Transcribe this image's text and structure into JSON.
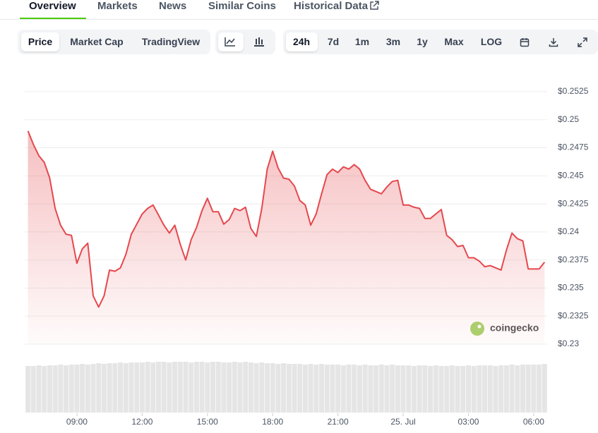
{
  "tabs": [
    "Overview",
    "Markets",
    "News",
    "Similar Coins",
    "Historical Data"
  ],
  "toolbar": {
    "views": [
      "Price",
      "Market Cap",
      "TradingView"
    ],
    "ranges": [
      "24h",
      "7d",
      "1m",
      "3m",
      "1y",
      "Max",
      "LOG"
    ]
  },
  "chart_data": {
    "type": "line",
    "x": [
      6.75,
      7,
      7.25,
      7.5,
      7.75,
      8,
      8.25,
      8.5,
      8.75,
      9,
      9.25,
      9.5,
      9.75,
      10,
      10.25,
      10.5,
      10.75,
      11,
      11.25,
      11.5,
      11.75,
      12,
      12.25,
      12.5,
      12.75,
      13,
      13.25,
      13.5,
      13.75,
      14,
      14.25,
      14.5,
      14.75,
      15,
      15.25,
      15.5,
      15.75,
      16,
      16.25,
      16.5,
      16.75,
      17,
      17.25,
      17.5,
      17.75,
      18,
      18.25,
      18.5,
      18.75,
      19,
      19.25,
      19.5,
      19.75,
      20,
      20.25,
      20.5,
      20.75,
      21,
      21.25,
      21.5,
      21.75,
      22,
      22.25,
      22.5,
      22.75,
      23,
      23.25,
      23.5,
      23.75,
      24,
      24.25,
      24.5,
      24.75,
      25,
      25.25,
      25.5,
      25.75,
      26,
      26.25,
      26.5,
      26.75,
      27,
      27.25,
      27.5,
      27.75,
      28,
      28.25,
      28.5,
      28.75,
      29,
      29.25,
      29.5,
      29.75,
      30,
      30.25,
      30.5
    ],
    "series": [
      {
        "color": "#e5484d",
        "values": [
          0.249,
          0.2478,
          0.2468,
          0.2462,
          0.2448,
          0.2421,
          0.2406,
          0.2398,
          0.2397,
          0.2372,
          0.2385,
          0.239,
          0.2343,
          0.2333,
          0.2343,
          0.2366,
          0.2365,
          0.2368,
          0.238,
          0.2398,
          0.2407,
          0.2416,
          0.2421,
          0.2424,
          0.2415,
          0.2406,
          0.2399,
          0.2406,
          0.2389,
          0.2375,
          0.2393,
          0.2404,
          0.2419,
          0.243,
          0.2418,
          0.2418,
          0.2407,
          0.2411,
          0.2421,
          0.2419,
          0.2422,
          0.2403,
          0.2396,
          0.2421,
          0.2456,
          0.2472,
          0.2457,
          0.2448,
          0.2447,
          0.2441,
          0.2428,
          0.2424,
          0.2406,
          0.2416,
          0.2434,
          0.2451,
          0.2456,
          0.2453,
          0.2458,
          0.2456,
          0.246,
          0.2456,
          0.2446,
          0.2438,
          0.2436,
          0.2434,
          0.244,
          0.2445,
          0.2446,
          0.2424,
          0.2424,
          0.2422,
          0.2421,
          0.2412,
          0.2412,
          0.2416,
          0.242,
          0.2397,
          0.2393,
          0.2387,
          0.2388,
          0.2377,
          0.2377,
          0.2374,
          0.2369,
          0.237,
          0.2368,
          0.2366,
          0.2384,
          0.2399,
          0.2394,
          0.2392,
          0.2367,
          0.2367,
          0.2367,
          0.2373
        ]
      }
    ],
    "volumes": [
      66,
      66,
      67,
      66,
      67,
      67,
      68,
      67,
      68,
      68,
      69,
      68,
      69,
      70,
      69,
      70,
      70,
      71,
      70,
      71,
      71,
      71,
      72,
      71,
      72,
      72,
      71,
      72,
      72,
      72,
      71,
      72,
      72,
      71,
      72,
      72,
      71,
      71,
      72,
      71,
      72,
      71,
      70,
      71,
      70,
      70,
      69,
      70,
      69,
      69,
      69,
      68,
      69,
      68,
      69,
      68,
      68,
      68,
      67,
      68,
      68,
      67,
      68,
      67,
      67,
      68,
      67,
      68,
      67,
      67,
      67,
      66,
      67,
      67,
      66,
      67,
      66,
      66,
      67,
      66,
      66,
      67,
      66,
      67,
      67,
      67,
      66,
      67,
      67,
      68,
      67,
      68,
      68,
      68,
      68,
      69
    ],
    "vlim": [
      0,
      80
    ],
    "ylim": [
      0.23,
      0.2525
    ],
    "yticks": [
      {
        "value": 0.23,
        "label": "$0.23"
      },
      {
        "value": 0.2325,
        "label": "$0.2325"
      },
      {
        "value": 0.235,
        "label": "$0.235"
      },
      {
        "value": 0.2375,
        "label": "$0.2375"
      },
      {
        "value": 0.24,
        "label": "$0.24"
      },
      {
        "value": 0.2425,
        "label": "$0.2425"
      },
      {
        "value": 0.245,
        "label": "$0.245"
      },
      {
        "value": 0.2475,
        "label": "$0.2475"
      },
      {
        "value": 0.25,
        "label": "$0.25"
      },
      {
        "value": 0.2525,
        "label": "$0.2525"
      }
    ],
    "xlim": [
      6.6,
      30.62
    ],
    "xticks": [
      {
        "value": 9,
        "label": "09:00"
      },
      {
        "value": 12,
        "label": "12:00"
      },
      {
        "value": 15,
        "label": "15:00"
      },
      {
        "value": 18,
        "label": "18:00"
      },
      {
        "value": 21,
        "label": "21:00"
      },
      {
        "value": 24,
        "label": "25. Jul"
      },
      {
        "value": 27,
        "label": "03:00"
      },
      {
        "value": 30,
        "label": "06:00"
      }
    ],
    "grid": true,
    "watermark": "coingecko"
  }
}
